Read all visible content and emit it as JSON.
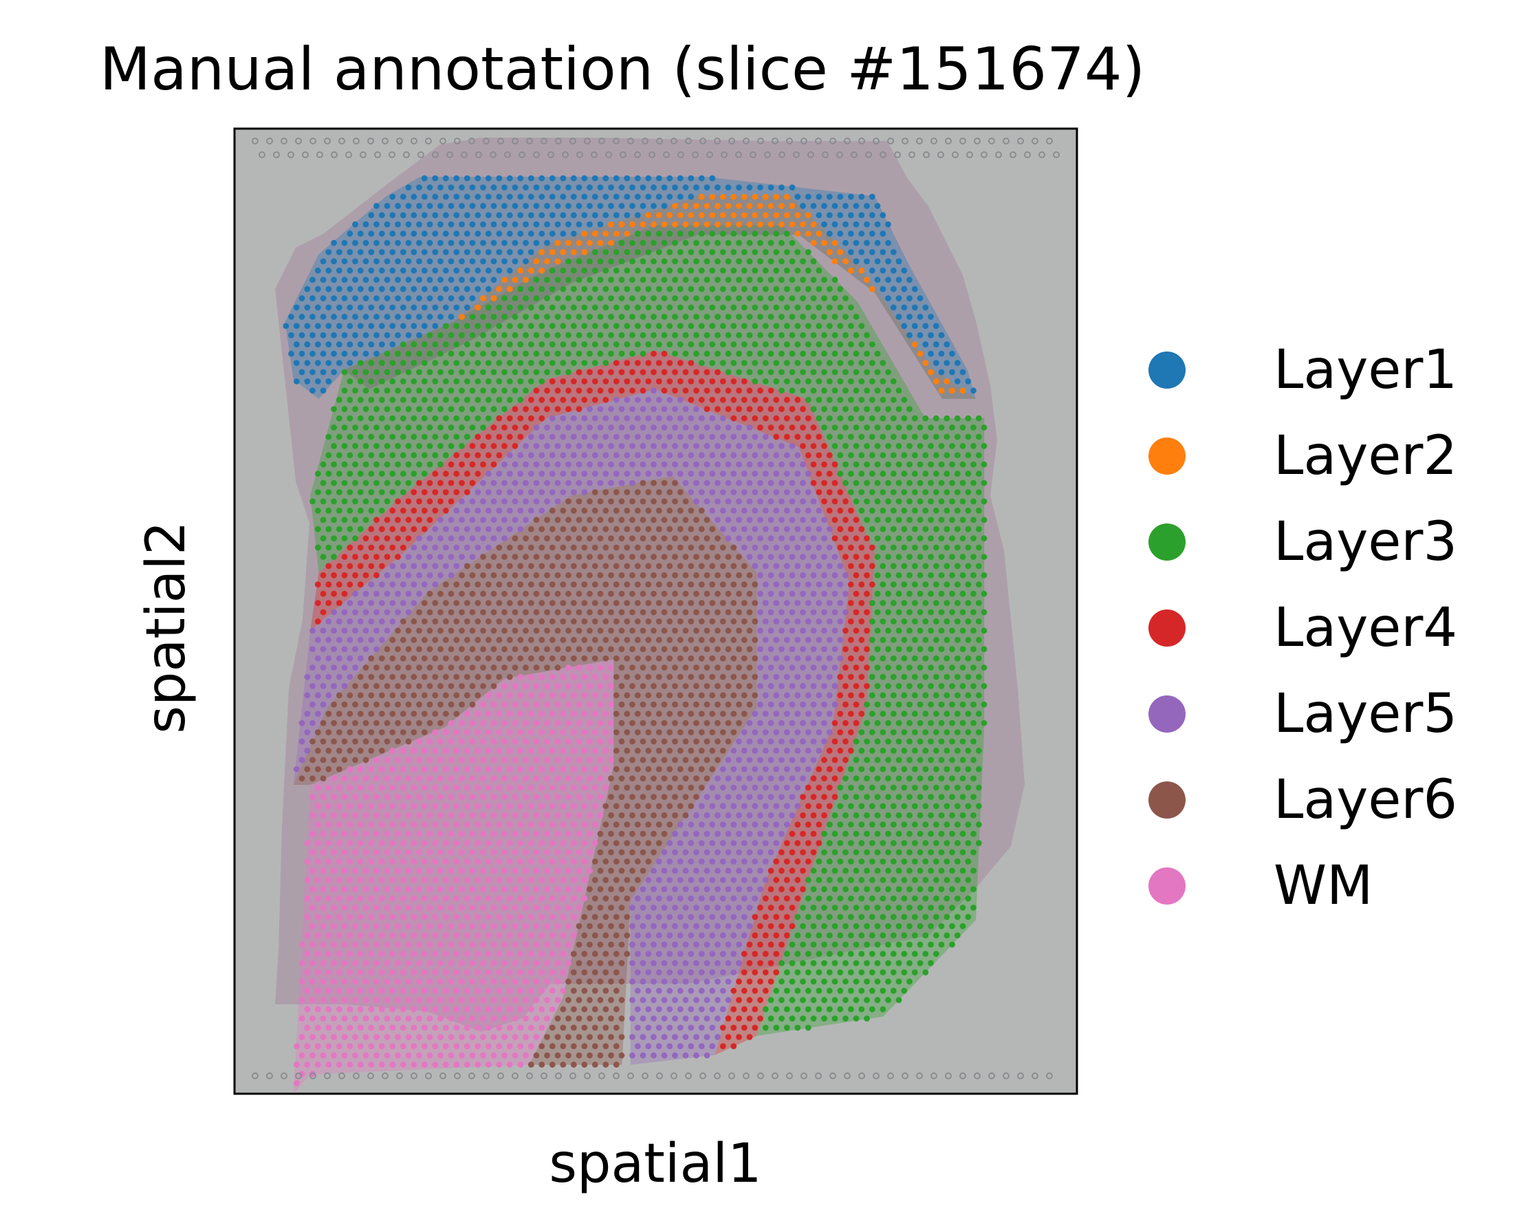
{
  "chart_data": {
    "type": "scatter",
    "title": "Manual annotation (slice #151674)",
    "xlabel": "spatial1",
    "ylabel": "spatial2",
    "xlim": [
      0,
      100
    ],
    "ylim": [
      100,
      0
    ],
    "background": "tissue histology image (H&E), grey slide",
    "grid": false,
    "legend_position": "right, outside plot",
    "categories": [
      "Layer1",
      "Layer2",
      "Layer3",
      "Layer4",
      "Layer5",
      "Layer6",
      "WM"
    ],
    "colors": {
      "Layer1": "#1f77b4",
      "Layer2": "#ff7f0e",
      "Layer3": "#2ca02c",
      "Layer4": "#d62728",
      "Layer5": "#9467bd",
      "Layer6": "#8c564b",
      "WM": "#e377c2"
    },
    "regions": [
      {
        "label": "WM",
        "shape": "polygon",
        "points": [
          [
            7,
            100
          ],
          [
            9,
            68
          ],
          [
            25,
            62
          ],
          [
            32,
            57
          ],
          [
            45,
            55
          ],
          [
            45,
            66
          ],
          [
            39,
            90
          ],
          [
            35,
            97
          ],
          [
            9,
            98
          ]
        ]
      },
      {
        "label": "Layer6",
        "shape": "polygon",
        "points": [
          [
            7,
            68
          ],
          [
            11,
            60
          ],
          [
            23,
            48
          ],
          [
            40,
            38
          ],
          [
            52,
            36
          ],
          [
            62,
            46
          ],
          [
            62,
            60
          ],
          [
            53,
            72
          ],
          [
            47,
            80
          ],
          [
            46,
            97
          ],
          [
            35,
            97
          ],
          [
            39,
            90
          ],
          [
            45,
            66
          ],
          [
            45,
            55
          ],
          [
            32,
            57
          ],
          [
            25,
            62
          ],
          [
            9,
            68
          ]
        ]
      },
      {
        "label": "Layer5",
        "shape": "polygon",
        "points": [
          [
            9,
            52
          ],
          [
            20,
            44
          ],
          [
            37,
            30
          ],
          [
            50,
            27
          ],
          [
            67,
            33
          ],
          [
            73,
            47
          ],
          [
            71,
            62
          ],
          [
            63,
            78
          ],
          [
            57,
            96
          ],
          [
            47,
            97
          ],
          [
            47,
            80
          ],
          [
            53,
            72
          ],
          [
            62,
            60
          ],
          [
            62,
            46
          ],
          [
            52,
            36
          ],
          [
            40,
            38
          ],
          [
            23,
            48
          ],
          [
            11,
            60
          ],
          [
            7,
            68
          ]
        ]
      },
      {
        "label": "Layer4",
        "shape": "polygon",
        "points": [
          [
            10,
            46
          ],
          [
            20,
            38
          ],
          [
            37,
            26
          ],
          [
            50,
            23
          ],
          [
            68,
            28
          ],
          [
            76,
            44
          ],
          [
            75,
            60
          ],
          [
            68,
            78
          ],
          [
            62,
            94
          ],
          [
            57,
            96
          ],
          [
            63,
            78
          ],
          [
            71,
            62
          ],
          [
            73,
            47
          ],
          [
            67,
            33
          ],
          [
            50,
            27
          ],
          [
            37,
            30
          ],
          [
            20,
            44
          ],
          [
            9,
            52
          ]
        ]
      },
      {
        "label": "Layer3",
        "shape": "polygon",
        "points": [
          [
            9,
            38
          ],
          [
            13,
            25
          ],
          [
            26,
            20
          ],
          [
            36,
            15
          ],
          [
            50,
            10
          ],
          [
            65,
            10
          ],
          [
            74,
            18
          ],
          [
            82,
            30
          ],
          [
            89,
            30
          ],
          [
            89,
            45
          ],
          [
            89,
            62
          ],
          [
            88,
            82
          ],
          [
            77,
            92
          ],
          [
            62,
            94
          ],
          [
            68,
            78
          ],
          [
            75,
            60
          ],
          [
            76,
            44
          ],
          [
            68,
            28
          ],
          [
            50,
            23
          ],
          [
            37,
            26
          ],
          [
            20,
            38
          ],
          [
            10,
            46
          ]
        ]
      },
      {
        "label": "Layer2",
        "shape": "polygon",
        "points": [
          [
            13,
            25
          ],
          [
            26,
            20
          ],
          [
            37,
            12
          ],
          [
            55,
            7
          ],
          [
            66,
            7
          ],
          [
            74,
            14
          ],
          [
            83,
            25
          ],
          [
            88,
            28
          ],
          [
            84,
            28
          ],
          [
            76,
            17
          ],
          [
            67,
            11
          ],
          [
            55,
            11
          ],
          [
            40,
            16
          ],
          [
            28,
            22
          ],
          [
            16,
            27
          ]
        ]
      },
      {
        "label": "Layer1",
        "shape": "polygon",
        "points": [
          [
            6,
            20
          ],
          [
            10,
            13
          ],
          [
            18,
            7
          ],
          [
            22,
            5
          ],
          [
            56,
            5
          ],
          [
            76,
            7
          ],
          [
            80,
            14
          ],
          [
            87,
            25
          ],
          [
            88,
            28
          ],
          [
            84,
            28
          ],
          [
            76,
            17
          ],
          [
            67,
            11
          ],
          [
            55,
            11
          ],
          [
            40,
            16
          ],
          [
            28,
            22
          ],
          [
            16,
            27
          ],
          [
            13,
            25
          ],
          [
            10,
            28
          ],
          [
            7,
            26
          ]
        ]
      }
    ]
  }
}
